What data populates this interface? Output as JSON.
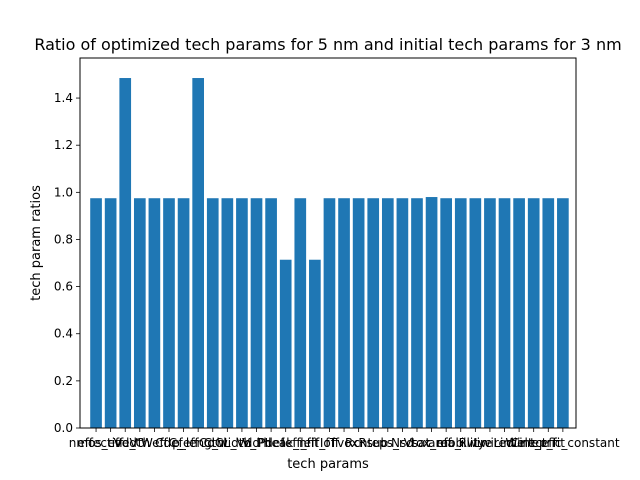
{
  "chart_data": {
    "type": "bar",
    "title": "Ratio of optimized tech params for 5 nm and initial tech params for 3 nm",
    "xlabel": "tech params",
    "ylabel": "tech param ratios",
    "ylim": [
      0,
      1.57
    ],
    "yticks": [
      0.0,
      0.2,
      0.4,
      0.6,
      0.8,
      1.0,
      1.2,
      1.4
    ],
    "ytick_labels": [
      "0.0",
      "0.2",
      "0.4",
      "0.6",
      "0.8",
      "1.0",
      "1.2",
      "1.4"
    ],
    "grid": false,
    "bar_color": "#1f77b4",
    "categories": [
      "nmos_eff",
      "effective_C",
      "Vdd",
      "Vth",
      "Weff",
      "Cdef",
      "C_eff",
      "p_length",
      "CdCl",
      "C_width",
      "L_Vdd",
      "V_Ph",
      "Pdef",
      "Ileak_n",
      "leff_fit",
      "leff_f",
      "Ioff",
      "Tvox",
      "Rcnt",
      "Rsub",
      "eps_r",
      "Nsd",
      "Vsat",
      "tox_eff",
      "area_i",
      "mobility",
      "Rwire",
      "Lwire",
      "Lint",
      "Wint",
      "Cint_eff",
      "ep_fit",
      "dielectric_constant"
    ],
    "values": [
      0.975,
      0.975,
      1.485,
      0.975,
      0.975,
      0.975,
      0.975,
      1.485,
      0.975,
      0.975,
      0.975,
      0.975,
      0.975,
      0.714,
      0.975,
      0.714,
      0.975,
      0.975,
      0.975,
      0.975,
      0.975,
      0.975,
      0.975,
      0.98,
      0.975,
      0.975,
      0.975,
      0.975,
      0.975,
      0.975,
      0.975,
      0.975,
      0.975
    ]
  }
}
